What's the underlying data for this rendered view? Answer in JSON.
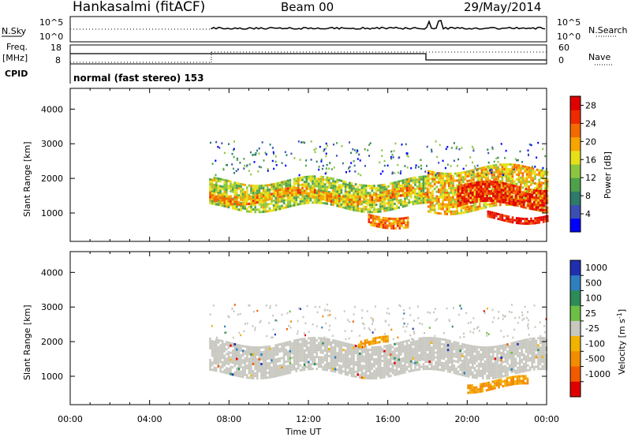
{
  "header": {
    "site": "Hankasalmi (fitACF)",
    "beam": "Beam 00",
    "date": "29/May/2014"
  },
  "labels": {
    "nsky": "N.Sky",
    "nsearch": "N.Search",
    "freq_line1": "Freq.",
    "freq_line2": "[MHz]",
    "nave": "Nave",
    "cpid": "CPID",
    "cpid_value": "normal (fast stereo) 153",
    "noise_ticks_left": [
      "10^5",
      "10^0"
    ],
    "noise_ticks_right": [
      "10^5",
      "10^0"
    ],
    "freq_ticks": [
      "18",
      "8"
    ],
    "nave_ticks": [
      "60",
      "0"
    ]
  },
  "colors": {
    "power_scale": [
      "#0000ff",
      "#3b4fb2",
      "#2f7a6a",
      "#4ea14a",
      "#8cc63f",
      "#e6e01a",
      "#f7a400",
      "#f26a00",
      "#ee2a00",
      "#e00000"
    ],
    "velocity_scale": [
      "#1f2fae",
      "#2f7fbf",
      "#2e8b57",
      "#6dbe45",
      "#c8c8c0",
      "#f2b200",
      "#f28c00",
      "#f25a00",
      "#e00000"
    ],
    "ground_scatter": "#c8c8c0"
  },
  "chart_data": [
    {
      "type": "heatmap",
      "title": "Power",
      "xlabel": "Time UT",
      "ylabel": "Slant Range [km]",
      "x_ticks": [
        "00:00",
        "04:00",
        "08:00",
        "12:00",
        "16:00",
        "20:00",
        "00:00"
      ],
      "y_ticks": [
        1000,
        2000,
        3000,
        4000
      ],
      "xlim_hours": [
        0,
        24
      ],
      "ylim_km": [
        180,
        4600
      ],
      "colorbar": {
        "label": "Power [dB]",
        "ticks": [
          4,
          8,
          12,
          16,
          20,
          24,
          28
        ],
        "range": [
          0,
          30
        ]
      },
      "data_start_hour": 7.0,
      "bands": [
        {
          "t0": 7.0,
          "t1": 18.0,
          "r0": 1150,
          "r1": 1950,
          "level": 14
        },
        {
          "t0": 7.0,
          "t1": 18.0,
          "r0": 1380,
          "r1": 1620,
          "level": 20
        },
        {
          "t0": 18.0,
          "t1": 24.0,
          "r0": 1100,
          "r1": 2300,
          "level": 18
        },
        {
          "t0": 19.5,
          "t1": 24.0,
          "r0": 1200,
          "r1": 1800,
          "level": 26
        },
        {
          "t0": 21.0,
          "t1": 24.0,
          "r0": 850,
          "r1": 1000,
          "level": 28
        },
        {
          "t0": 15.0,
          "t1": 17.0,
          "r0": 700,
          "r1": 1000,
          "level": 22
        }
      ]
    },
    {
      "type": "heatmap",
      "title": "Velocity",
      "xlabel": "Time UT",
      "ylabel": "Slant Range [km]",
      "x_ticks": [
        "00:00",
        "04:00",
        "08:00",
        "12:00",
        "16:00",
        "20:00",
        "00:00"
      ],
      "y_ticks": [
        1000,
        2000,
        3000,
        4000
      ],
      "xlim_hours": [
        0,
        24
      ],
      "ylim_km": [
        180,
        4600
      ],
      "colorbar": {
        "label": "Velocity [m s^-1]",
        "ticks": [
          1000,
          500,
          100,
          25,
          -25,
          -100,
          -500,
          -1000
        ]
      },
      "data_start_hour": 7.0,
      "bands": [
        {
          "t0": 7.0,
          "t1": 24.0,
          "r0": 1050,
          "r1": 2000,
          "level": 0
        },
        {
          "t0": 20.0,
          "t1": 23.0,
          "r0": 650,
          "r1": 900,
          "level": -400
        },
        {
          "t0": 14.5,
          "t1": 16.0,
          "r0": 1850,
          "r1": 2050,
          "level": -300
        }
      ]
    }
  ]
}
